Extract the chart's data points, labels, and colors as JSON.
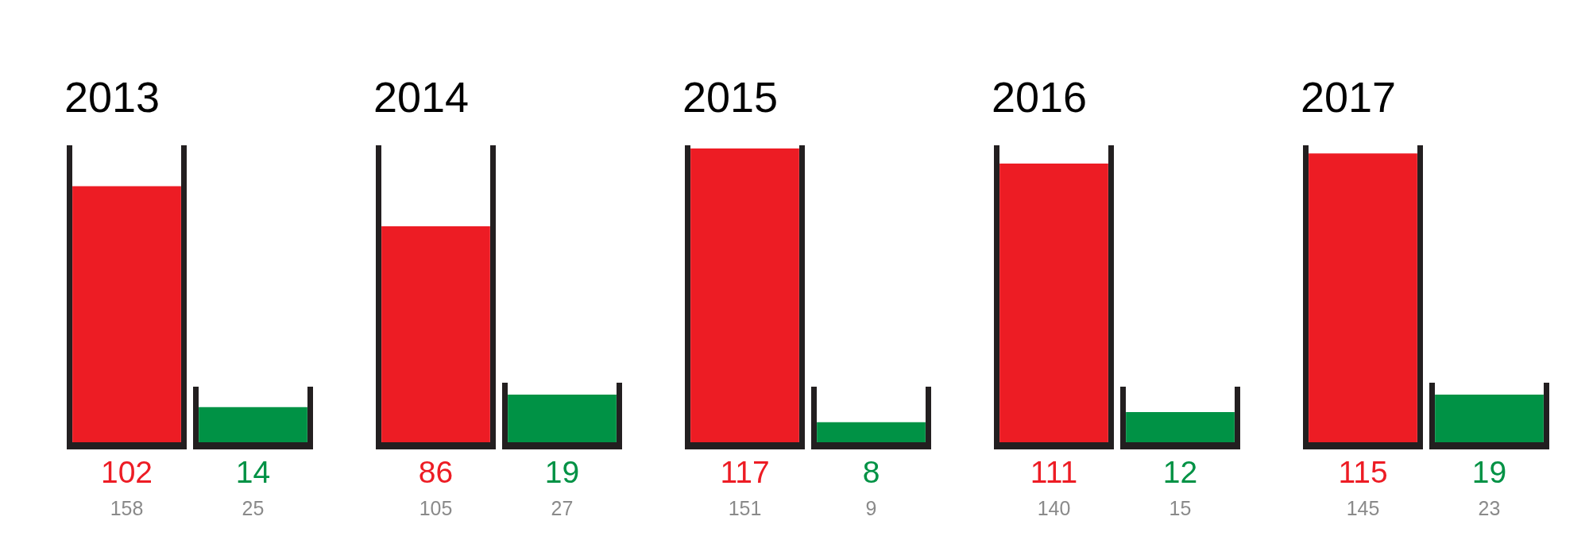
{
  "chart_data": [
    {
      "type": "bar",
      "title": "2013",
      "categories": [
        null,
        null
      ],
      "values": [
        102,
        14
      ],
      "colors": [
        "#ed1c24",
        "#009245"
      ],
      "data_labels": true,
      "annotations": [
        "158",
        "25"
      ],
      "tick_labels": false
    },
    {
      "type": "bar",
      "title": "2014",
      "categories": [
        null,
        null
      ],
      "values": [
        86,
        19
      ],
      "colors": [
        "#ed1c24",
        "#009245"
      ],
      "data_labels": true,
      "annotations": [
        "105",
        "27"
      ],
      "tick_labels": false
    },
    {
      "type": "bar",
      "title": "2015",
      "categories": [
        null,
        null
      ],
      "values": [
        117,
        8
      ],
      "colors": [
        "#ed1c24",
        "#009245"
      ],
      "data_labels": true,
      "annotations": [
        "151",
        "9"
      ],
      "tick_labels": false
    },
    {
      "type": "bar",
      "title": "2016",
      "categories": [
        null,
        null
      ],
      "values": [
        111,
        12
      ],
      "colors": [
        "#ed1c24",
        "#009245"
      ],
      "data_labels": true,
      "annotations": [
        "140",
        "15"
      ],
      "tick_labels": false
    },
    {
      "type": "bar",
      "title": "2017",
      "categories": [
        null,
        null
      ],
      "values": [
        115,
        19
      ],
      "colors": [
        "#ed1c24",
        "#009245"
      ],
      "data_labels": true,
      "annotations": [
        "145",
        "23"
      ],
      "tick_labels": false
    }
  ]
}
